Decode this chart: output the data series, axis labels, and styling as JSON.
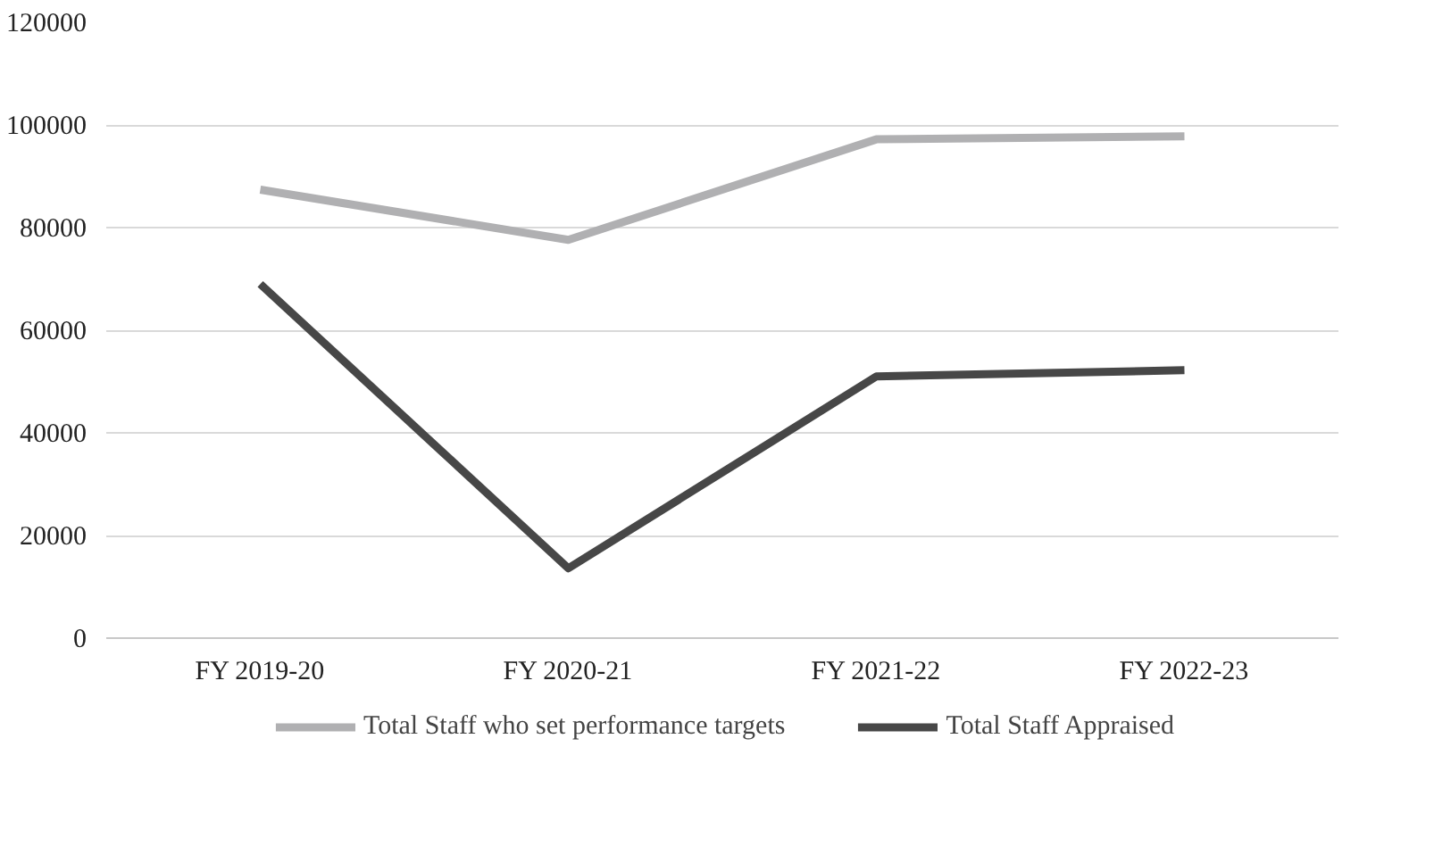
{
  "chart_data": {
    "type": "line",
    "categories": [
      "FY 2019-20",
      "FY 2020-21",
      "FY 2021-22",
      "FY 2022-23"
    ],
    "series": [
      {
        "name": "Total Staff who set performance targets",
        "color": "#b0b0b2",
        "values": [
          87400,
          77600,
          97200,
          97800
        ]
      },
      {
        "name": "Total Staff Appraised",
        "color": "#474747",
        "values": [
          69000,
          13600,
          51000,
          52200
        ]
      }
    ],
    "ylim": [
      0,
      120000
    ],
    "yticks": [
      0,
      20000,
      40000,
      60000,
      80000,
      100000,
      120000
    ],
    "grid": "y",
    "legend": "bottom",
    "marker": "none",
    "line_style": "solid"
  }
}
